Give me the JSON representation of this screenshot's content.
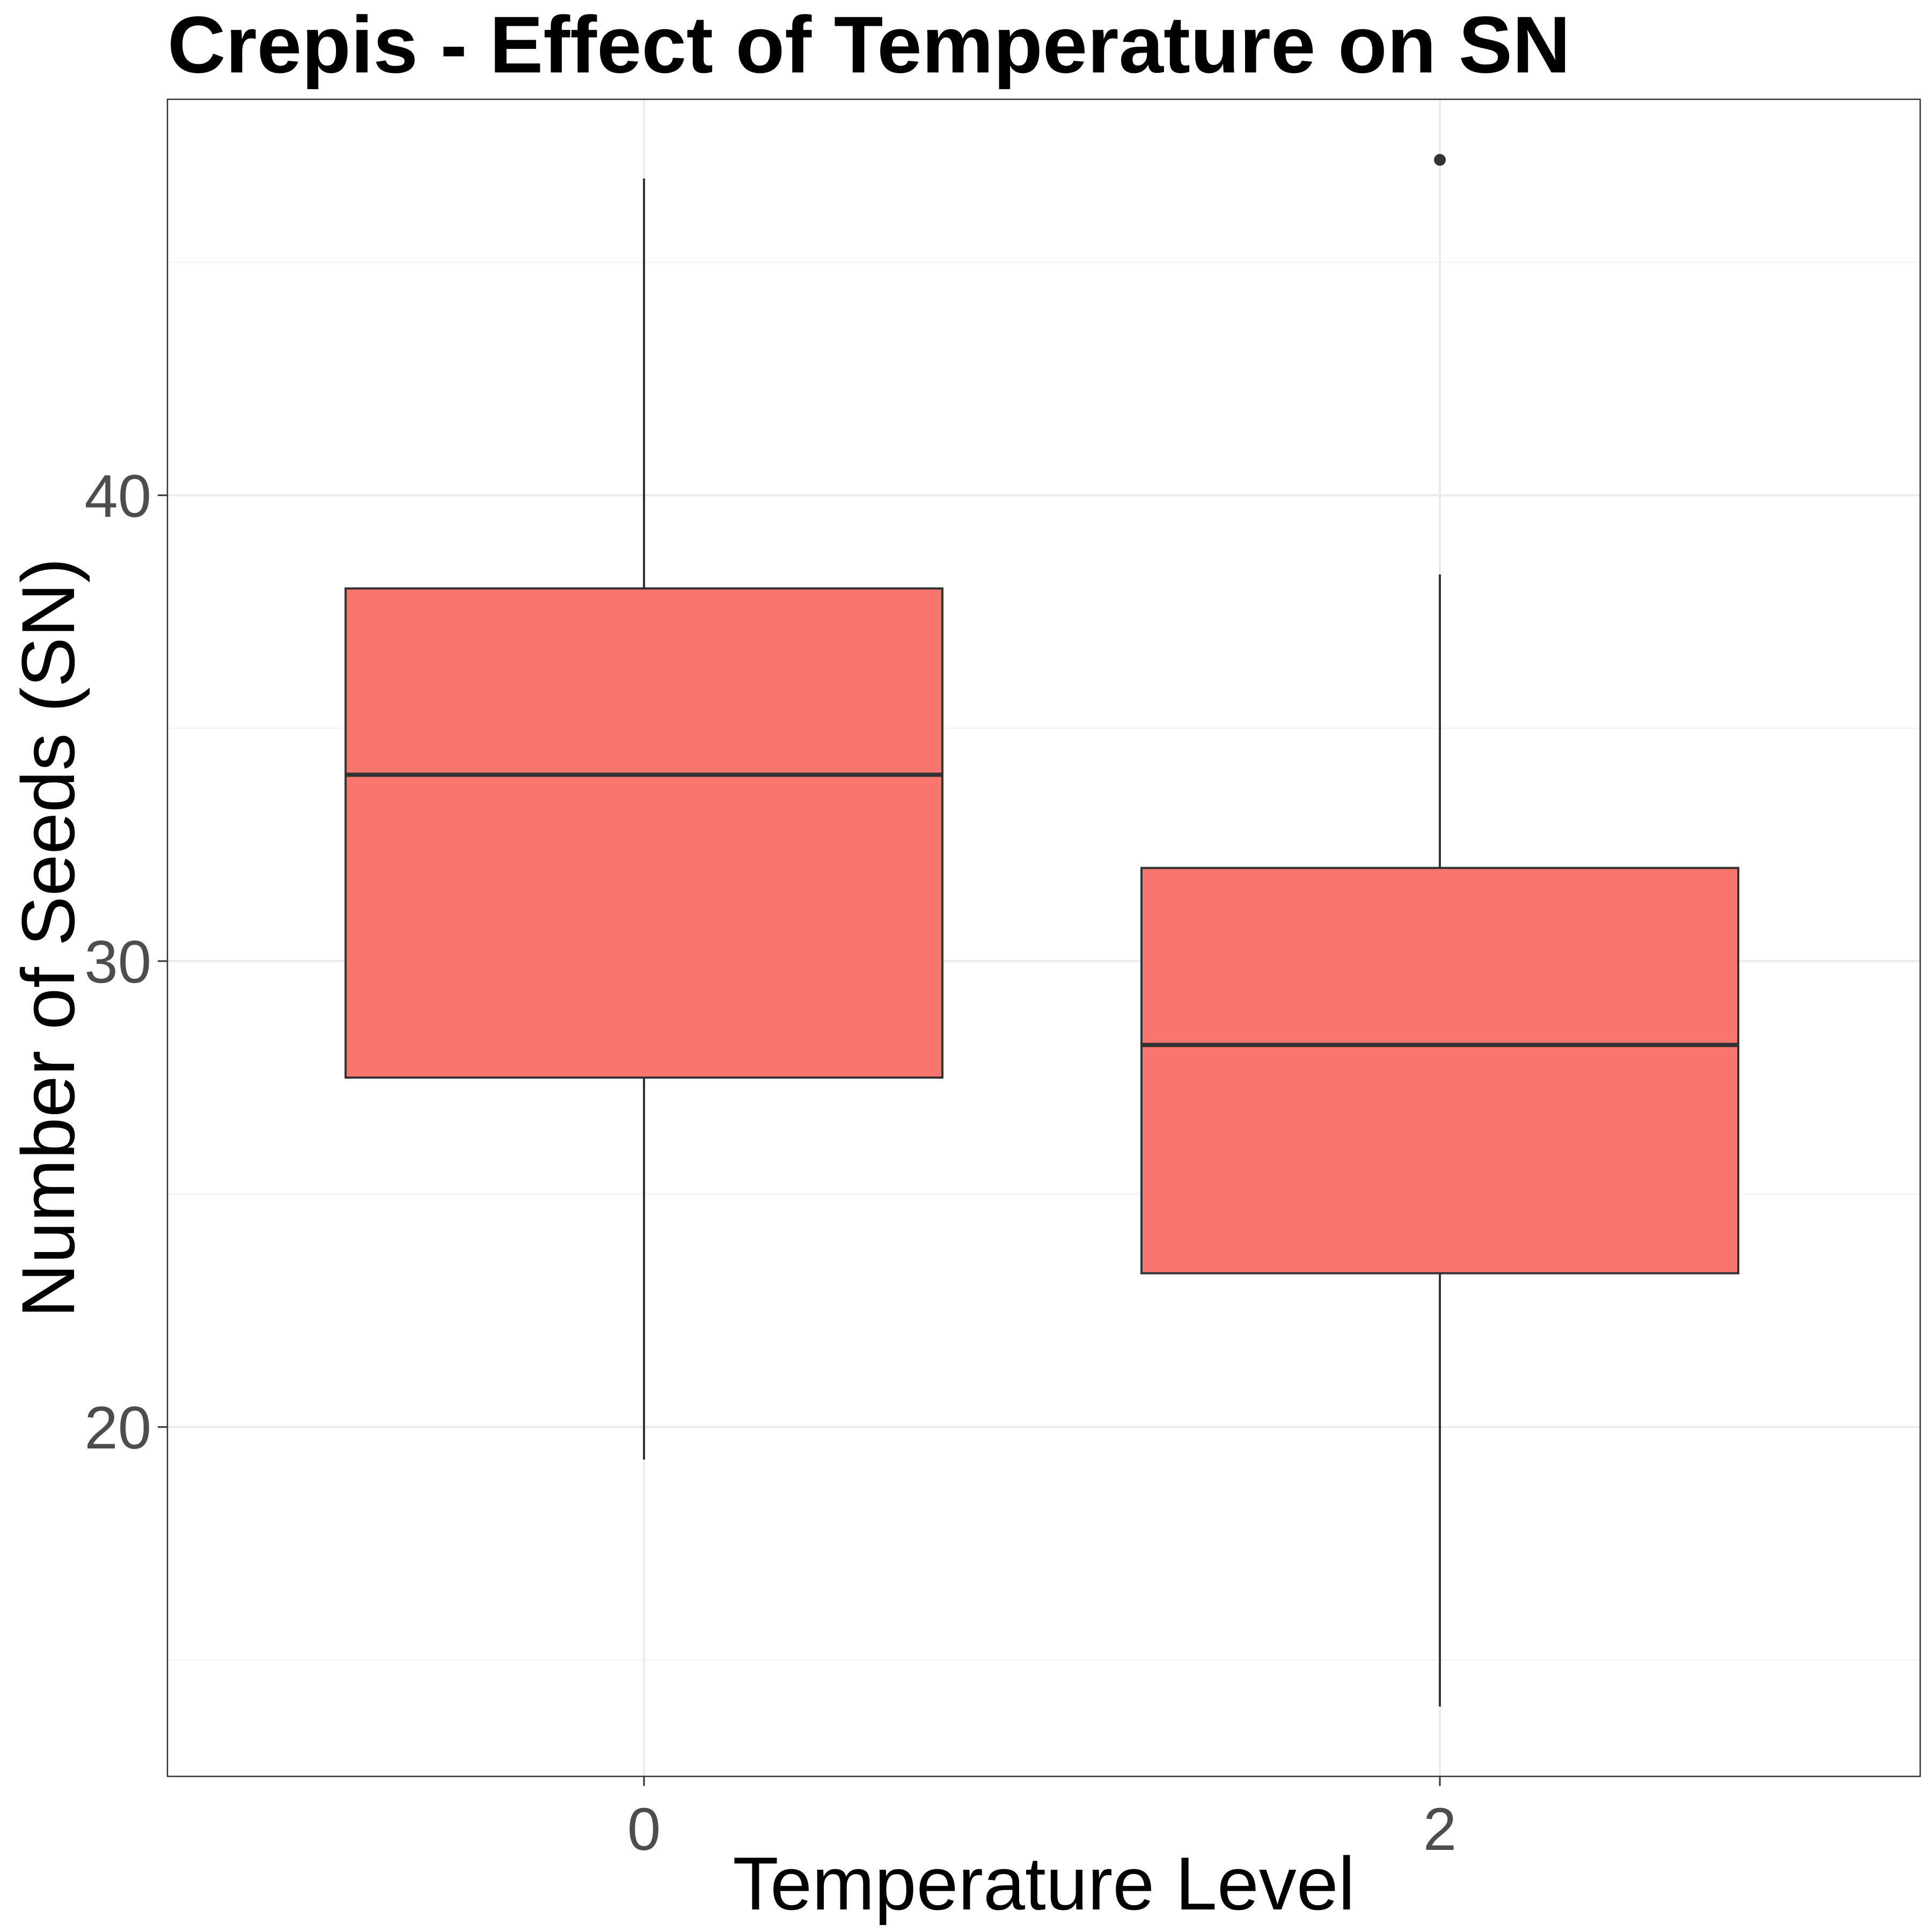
{
  "chart_data": {
    "type": "boxplot",
    "title": "Crepis - Effect of Temperature on SN",
    "xlabel": "Temperature Level",
    "ylabel": "Number of Seeds (SN)",
    "ylim": [
      12.5,
      48.5
    ],
    "y_major_ticks": [
      20,
      30,
      40
    ],
    "y_minor_ticks": [
      15,
      25,
      35,
      45
    ],
    "categories": [
      "0",
      "2"
    ],
    "boxes": [
      {
        "category": "0",
        "lower_whisker": 19.3,
        "q1": 27.5,
        "median": 34.0,
        "q3": 38.0,
        "upper_whisker": 46.8,
        "outliers": []
      },
      {
        "category": "2",
        "lower_whisker": 14.0,
        "q1": 23.3,
        "median": 28.2,
        "q3": 32.0,
        "upper_whisker": 38.3,
        "outliers": [
          47.2
        ]
      }
    ],
    "fill_color": "#F8766D",
    "line_color": "#333333",
    "grid": true,
    "legend": "none"
  }
}
